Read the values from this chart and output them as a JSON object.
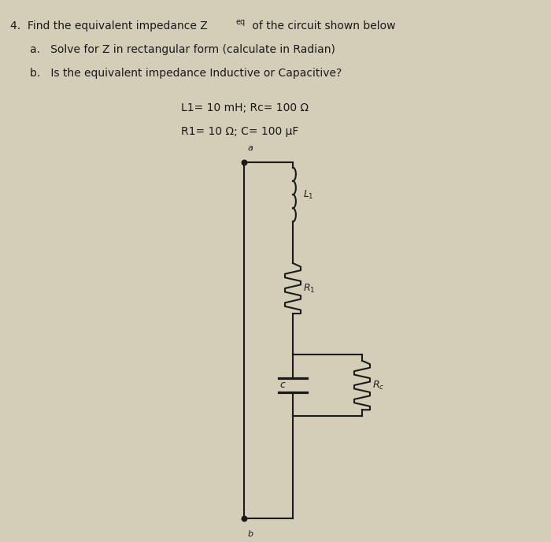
{
  "background_color": "#d4cdb8",
  "text_color": "#1a1a1a",
  "line_color": "#1a1a1a",
  "fig_width": 7.0,
  "fig_height": 6.88,
  "node_a_label": "a",
  "node_b_label": "b",
  "node_c_label": "c",
  "param_line1": "L1= 10 mH; Rc= 100 Ω",
  "param_line2": "R1= 10 Ω; C= 100 μF"
}
